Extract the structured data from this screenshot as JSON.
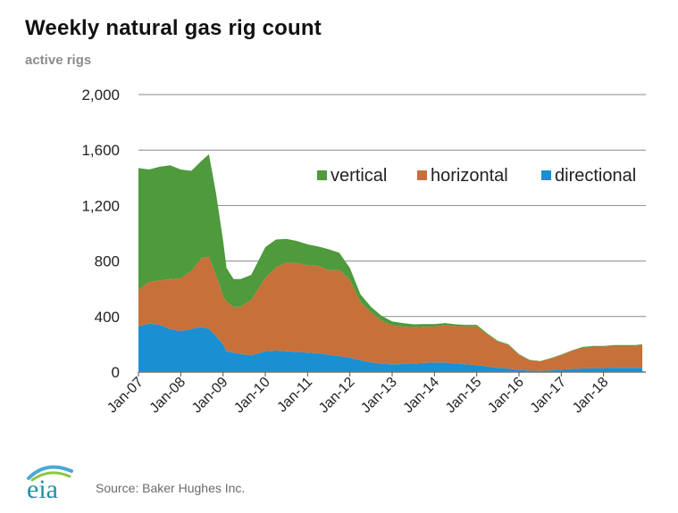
{
  "header": {
    "title": "Weekly natural gas rig count",
    "subtitle": "active rigs"
  },
  "footer": {
    "logo_text": "eia",
    "source": "Source: Baker Hughes Inc."
  },
  "colors": {
    "vertical": "#4e9a3c",
    "horizontal": "#c8703a",
    "directional": "#1a8fd2",
    "grid": "#8a8a8a",
    "axis_text": "#222222",
    "logo_teal": "#1f8fa3",
    "logo_arc_blue": "#4aa8d8",
    "logo_arc_green": "#8dc63f"
  },
  "chart_data": {
    "type": "area",
    "stacked": true,
    "title": "Weekly natural gas rig count",
    "ylabel": "active rigs",
    "ylim": [
      0,
      2000
    ],
    "yticks": [
      0,
      400,
      800,
      1200,
      1600,
      2000
    ],
    "ytick_labels": [
      "0",
      "400",
      "800",
      "1,200",
      "1,600",
      "2,000"
    ],
    "xlim": [
      "2007-01",
      "2019-01"
    ],
    "xticks": [
      "2007-01",
      "2008-01",
      "2009-01",
      "2010-01",
      "2011-01",
      "2012-01",
      "2013-01",
      "2014-01",
      "2015-01",
      "2016-01",
      "2017-01",
      "2018-01"
    ],
    "xtick_labels": [
      "Jan-07",
      "Jan-08",
      "Jan-09",
      "Jan-10",
      "Jan-11",
      "Jan-12",
      "Jan-13",
      "Jan-14",
      "Jan-15",
      "Jan-16",
      "Jan-17",
      "Jan-18"
    ],
    "grid": true,
    "legend": "top-right",
    "x": [
      "2007-01",
      "2007-04",
      "2007-07",
      "2007-10",
      "2008-01",
      "2008-04",
      "2008-07",
      "2008-09",
      "2008-11",
      "2009-01",
      "2009-02",
      "2009-04",
      "2009-06",
      "2009-09",
      "2010-01",
      "2010-04",
      "2010-07",
      "2010-10",
      "2011-01",
      "2011-04",
      "2011-07",
      "2011-10",
      "2012-01",
      "2012-04",
      "2012-07",
      "2012-10",
      "2013-01",
      "2013-04",
      "2013-07",
      "2013-10",
      "2014-01",
      "2014-04",
      "2014-07",
      "2014-10",
      "2015-01",
      "2015-04",
      "2015-07",
      "2015-10",
      "2016-01",
      "2016-04",
      "2016-07",
      "2016-10",
      "2017-01",
      "2017-04",
      "2017-07",
      "2017-10",
      "2018-01",
      "2018-04",
      "2018-07",
      "2018-10",
      "2018-12"
    ],
    "series": [
      {
        "name": "directional",
        "values": [
          330,
          350,
          340,
          310,
          295,
          310,
          325,
          310,
          260,
          200,
          150,
          140,
          130,
          120,
          150,
          155,
          150,
          145,
          140,
          135,
          125,
          115,
          105,
          85,
          70,
          60,
          55,
          58,
          62,
          66,
          68,
          68,
          62,
          55,
          50,
          40,
          30,
          25,
          15,
          10,
          8,
          12,
          18,
          22,
          26,
          28,
          28,
          30,
          30,
          30,
          30
        ]
      },
      {
        "name": "horizontal",
        "values": [
          260,
          300,
          320,
          360,
          380,
          420,
          500,
          520,
          440,
          350,
          360,
          330,
          340,
          400,
          530,
          600,
          640,
          640,
          630,
          630,
          610,
          620,
          560,
          420,
          360,
          310,
          280,
          270,
          260,
          260,
          260,
          270,
          270,
          275,
          280,
          230,
          190,
          170,
          110,
          75,
          70,
          85,
          105,
          130,
          150,
          155,
          155,
          160,
          160,
          160,
          165
        ]
      },
      {
        "name": "vertical",
        "values": [
          880,
          810,
          820,
          820,
          785,
          720,
          700,
          740,
          590,
          400,
          240,
          200,
          200,
          180,
          220,
          200,
          170,
          160,
          150,
          140,
          150,
          125,
          85,
          55,
          40,
          35,
          30,
          25,
          22,
          20,
          18,
          15,
          12,
          10,
          10,
          8,
          5,
          5,
          4,
          3,
          2,
          3,
          3,
          4,
          5,
          5,
          5,
          5,
          5,
          5,
          5
        ]
      }
    ]
  }
}
